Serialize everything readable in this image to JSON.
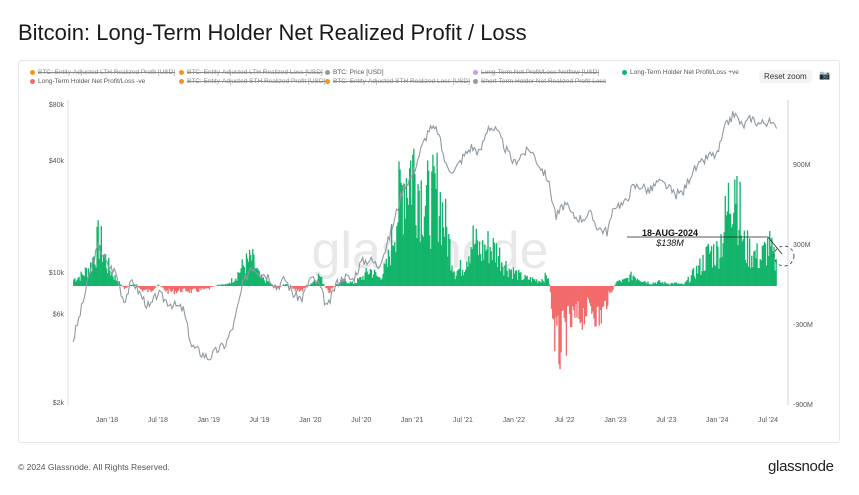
{
  "title": "Bitcoin: Long-Term Holder Net Realized Profit / Loss",
  "legend": [
    {
      "label": "BTC: Entity-Adjusted LTH Realized Profit [USD]",
      "color": "#f7931a",
      "enabled": false
    },
    {
      "label": "BTC: Entity-Adjusted LTH Realized Loss [USD]",
      "color": "#f7931a",
      "enabled": false
    },
    {
      "label": "BTC: Price [USD]",
      "color": "#8f9aa3",
      "enabled": true
    },
    {
      "label": "Long-Term Net Profit/Loss Netflow [USD]",
      "color": "#c9a0e8",
      "enabled": false
    },
    {
      "label": "Long-Term Holder Net Profit/Loss +ve",
      "color": "#13b56b",
      "enabled": true
    },
    {
      "label": "Long-Term Holder Net Profit/Loss -ve",
      "color": "#f26a6a",
      "enabled": true
    },
    {
      "label": "BTC: Entity-Adjusted STH Realized Profit [USD]",
      "color": "#f7931a",
      "enabled": false
    },
    {
      "label": "BTC: Entity-Adjusted STH Realized Loss [USD]",
      "color": "#f7931a",
      "enabled": false
    },
    {
      "label": "Short-Term Holder Net Realized Profit-Loss",
      "color": "#999999",
      "enabled": false
    }
  ],
  "reset_zoom": "Reset zoom",
  "camera_icon": "camera-icon",
  "watermark": "glassnode",
  "footer": "© 2024 Glassnode. All Rights Reserved.",
  "logo": "glassnode",
  "chart_data": {
    "type": "area",
    "title": "Bitcoin: Long-Term Holder Net Realized Profit / Loss",
    "x_ticks": [
      "Jan '18",
      "Jul '18",
      "Jan '19",
      "Jul '19",
      "Jan '20",
      "Jul '20",
      "Jan '21",
      "Jul '21",
      "Jan '22",
      "Jul '22",
      "Jan '23",
      "Jul '23",
      "Jan '24",
      "Jul '24"
    ],
    "y_left": {
      "scale": "log",
      "ticks": [
        "$80k",
        "$40k",
        "$10k",
        "$6k",
        "$2k"
      ],
      "range": [
        2000,
        80000
      ]
    },
    "y_right": {
      "scale": "linear",
      "ticks": [
        "900M",
        "300M",
        "-300M",
        "-900M"
      ],
      "range": [
        -900000000,
        1200000000
      ]
    },
    "grid": false,
    "legend_placement": "top",
    "months": [
      "2017-09",
      "2017-10",
      "2017-11",
      "2017-12",
      "2018-01",
      "2018-02",
      "2018-03",
      "2018-04",
      "2018-05",
      "2018-06",
      "2018-07",
      "2018-08",
      "2018-09",
      "2018-10",
      "2018-11",
      "2018-12",
      "2019-01",
      "2019-02",
      "2019-03",
      "2019-04",
      "2019-05",
      "2019-06",
      "2019-07",
      "2019-08",
      "2019-09",
      "2019-10",
      "2019-11",
      "2019-12",
      "2020-01",
      "2020-02",
      "2020-03",
      "2020-04",
      "2020-05",
      "2020-06",
      "2020-07",
      "2020-08",
      "2020-09",
      "2020-10",
      "2020-11",
      "2020-12",
      "2021-01",
      "2021-02",
      "2021-03",
      "2021-04",
      "2021-05",
      "2021-06",
      "2021-07",
      "2021-08",
      "2021-09",
      "2021-10",
      "2021-11",
      "2021-12",
      "2022-01",
      "2022-02",
      "2022-03",
      "2022-04",
      "2022-05",
      "2022-06",
      "2022-07",
      "2022-08",
      "2022-09",
      "2022-10",
      "2022-11",
      "2022-12",
      "2023-01",
      "2023-02",
      "2023-03",
      "2023-04",
      "2023-05",
      "2023-06",
      "2023-07",
      "2023-08",
      "2023-09",
      "2023-10",
      "2023-11",
      "2023-12",
      "2024-01",
      "2024-02",
      "2024-03",
      "2024-04",
      "2024-05",
      "2024-06",
      "2024-07",
      "2024-08"
    ],
    "series": [
      {
        "name": "BTC: Price [USD]",
        "color": "#8f9aa3",
        "values": [
          4300,
          6400,
          10000,
          14000,
          11000,
          10000,
          7000,
          9000,
          7500,
          6400,
          7700,
          7000,
          6600,
          6300,
          4000,
          3700,
          3450,
          3800,
          4100,
          5300,
          8500,
          10800,
          10000,
          9600,
          8300,
          9200,
          7600,
          7200,
          9300,
          8600,
          6400,
          8600,
          9500,
          9100,
          11300,
          11700,
          10800,
          13800,
          19700,
          29000,
          33000,
          45000,
          58800,
          57700,
          37300,
          35000,
          41500,
          47100,
          43800,
          61300,
          57000,
          46300,
          38500,
          43200,
          45500,
          37700,
          31800,
          19800,
          23300,
          20000,
          19400,
          20500,
          17200,
          16500,
          23100,
          23100,
          28500,
          29200,
          27200,
          30500,
          29200,
          26000,
          27000,
          34500,
          37700,
          42300,
          42600,
          61000,
          71300,
          60600,
          67500,
          62700,
          64600,
          59000
        ]
      },
      {
        "name": "Long-Term Holder Net Profit/Loss",
        "color_pos": "#13b56b",
        "color_neg": "#f26a6a",
        "values_musd": [
          50,
          80,
          150,
          350,
          150,
          50,
          -20,
          20,
          -30,
          -40,
          10,
          -40,
          -40,
          -30,
          -40,
          -30,
          -20,
          10,
          10,
          60,
          150,
          200,
          60,
          30,
          -20,
          20,
          -30,
          -30,
          20,
          80,
          -50,
          10,
          40,
          20,
          60,
          120,
          60,
          150,
          500,
          800,
          900,
          700,
          600,
          700,
          400,
          100,
          150,
          350,
          250,
          300,
          250,
          150,
          100,
          60,
          50,
          40,
          80,
          -500,
          -350,
          -250,
          -220,
          -150,
          -250,
          -100,
          30,
          40,
          80,
          50,
          20,
          30,
          20,
          20,
          10,
          80,
          150,
          250,
          250,
          500,
          900,
          300,
          250,
          200,
          300,
          138
        ]
      }
    ],
    "annotation": {
      "date": "18-AUG-2024",
      "value": "$138M"
    }
  }
}
